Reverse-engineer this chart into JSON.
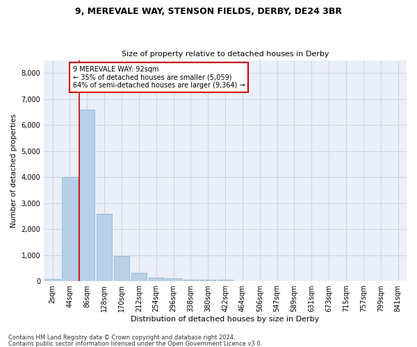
{
  "title1": "9, MEREVALE WAY, STENSON FIELDS, DERBY, DE24 3BR",
  "title2": "Size of property relative to detached houses in Derby",
  "xlabel": "Distribution of detached houses by size in Derby",
  "ylabel": "Number of detached properties",
  "bar_labels": [
    "2sqm",
    "44sqm",
    "86sqm",
    "128sqm",
    "170sqm",
    "212sqm",
    "254sqm",
    "296sqm",
    "338sqm",
    "380sqm",
    "422sqm",
    "464sqm",
    "506sqm",
    "547sqm",
    "589sqm",
    "631sqm",
    "673sqm",
    "715sqm",
    "757sqm",
    "799sqm",
    "841sqm"
  ],
  "bar_values": [
    75,
    4000,
    6600,
    2600,
    950,
    320,
    130,
    120,
    60,
    55,
    65,
    0,
    0,
    0,
    0,
    0,
    0,
    0,
    0,
    0,
    0
  ],
  "bar_color": "#b8d0e8",
  "bar_edge_color": "#8ab0cc",
  "highlight_bar_index": 2,
  "annotation_box_text": "9 MEREVALE WAY: 92sqm\n← 35% of detached houses are smaller (5,059)\n64% of semi-detached houses are larger (9,364) →",
  "vline_color": "#cc0000",
  "ylim": [
    0,
    8500
  ],
  "yticks": [
    0,
    1000,
    2000,
    3000,
    4000,
    5000,
    6000,
    7000,
    8000
  ],
  "grid_color": "#c8d4e8",
  "bg_color": "#eaeff8",
  "footer1": "Contains HM Land Registry data © Crown copyright and database right 2024.",
  "footer2": "Contains public sector information licensed under the Open Government Licence v3.0."
}
